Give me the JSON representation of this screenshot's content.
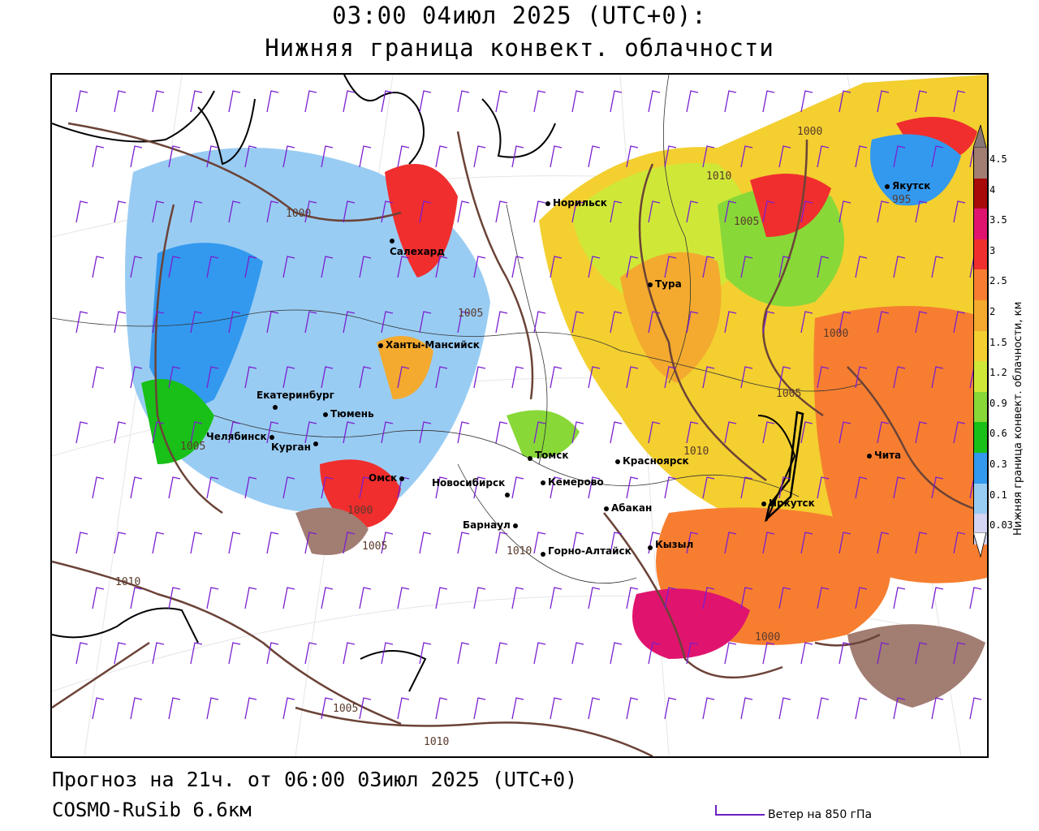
{
  "header": {
    "time_title": "03:00 04июл 2025 (UTC+0):",
    "field_title": "Нижняя граница конвект. облачности"
  },
  "footer": {
    "forecast": "Прогноз на 21ч. от 06:00 03июл 2025 (UTC+0)",
    "model": "COSMO-RuSib 6.6км",
    "wind_key": "Ветер на 850 гПа"
  },
  "legend": {
    "title": "Нижняя граница конвект. облачности, км",
    "ticks": [
      "4.5",
      "4",
      "3.5",
      "3",
      "2.5",
      "2",
      "1.5",
      "1.2",
      "0.9",
      "0.6",
      "0.3",
      "0.1",
      "0.03"
    ],
    "colors": [
      "#a27d72",
      "#a80a0a",
      "#e0146e",
      "#f02e2e",
      "#f77e30",
      "#f3aa2e",
      "#f3d030",
      "#cfe838",
      "#88d838",
      "#18c018",
      "#3399ee",
      "#99ccf3",
      "#d4d4f3"
    ]
  },
  "cities": [
    {
      "name": "Норильск"
    },
    {
      "name": "Якутск"
    },
    {
      "name": "Салехард"
    },
    {
      "name": "Тура"
    },
    {
      "name": "Ханты-Мансийск"
    },
    {
      "name": "Екатеринбург"
    },
    {
      "name": "Тюмень"
    },
    {
      "name": "Челябинск"
    },
    {
      "name": "Курган"
    },
    {
      "name": "Омск"
    },
    {
      "name": "Томск"
    },
    {
      "name": "Новосибирск"
    },
    {
      "name": "Кемерово"
    },
    {
      "name": "Красноярск"
    },
    {
      "name": "Барнаул"
    },
    {
      "name": "Абакан"
    },
    {
      "name": "Горно-Алтайск"
    },
    {
      "name": "Кызыл"
    },
    {
      "name": "Иркутск"
    },
    {
      "name": "Чита"
    }
  ],
  "isobars": [
    "1000",
    "1000",
    "1010",
    "1005",
    "995",
    "1005",
    "1000",
    "1005",
    "1010",
    "1005",
    "1000",
    "1005",
    "1010",
    "1010",
    "1000",
    "1005",
    "1010"
  ]
}
